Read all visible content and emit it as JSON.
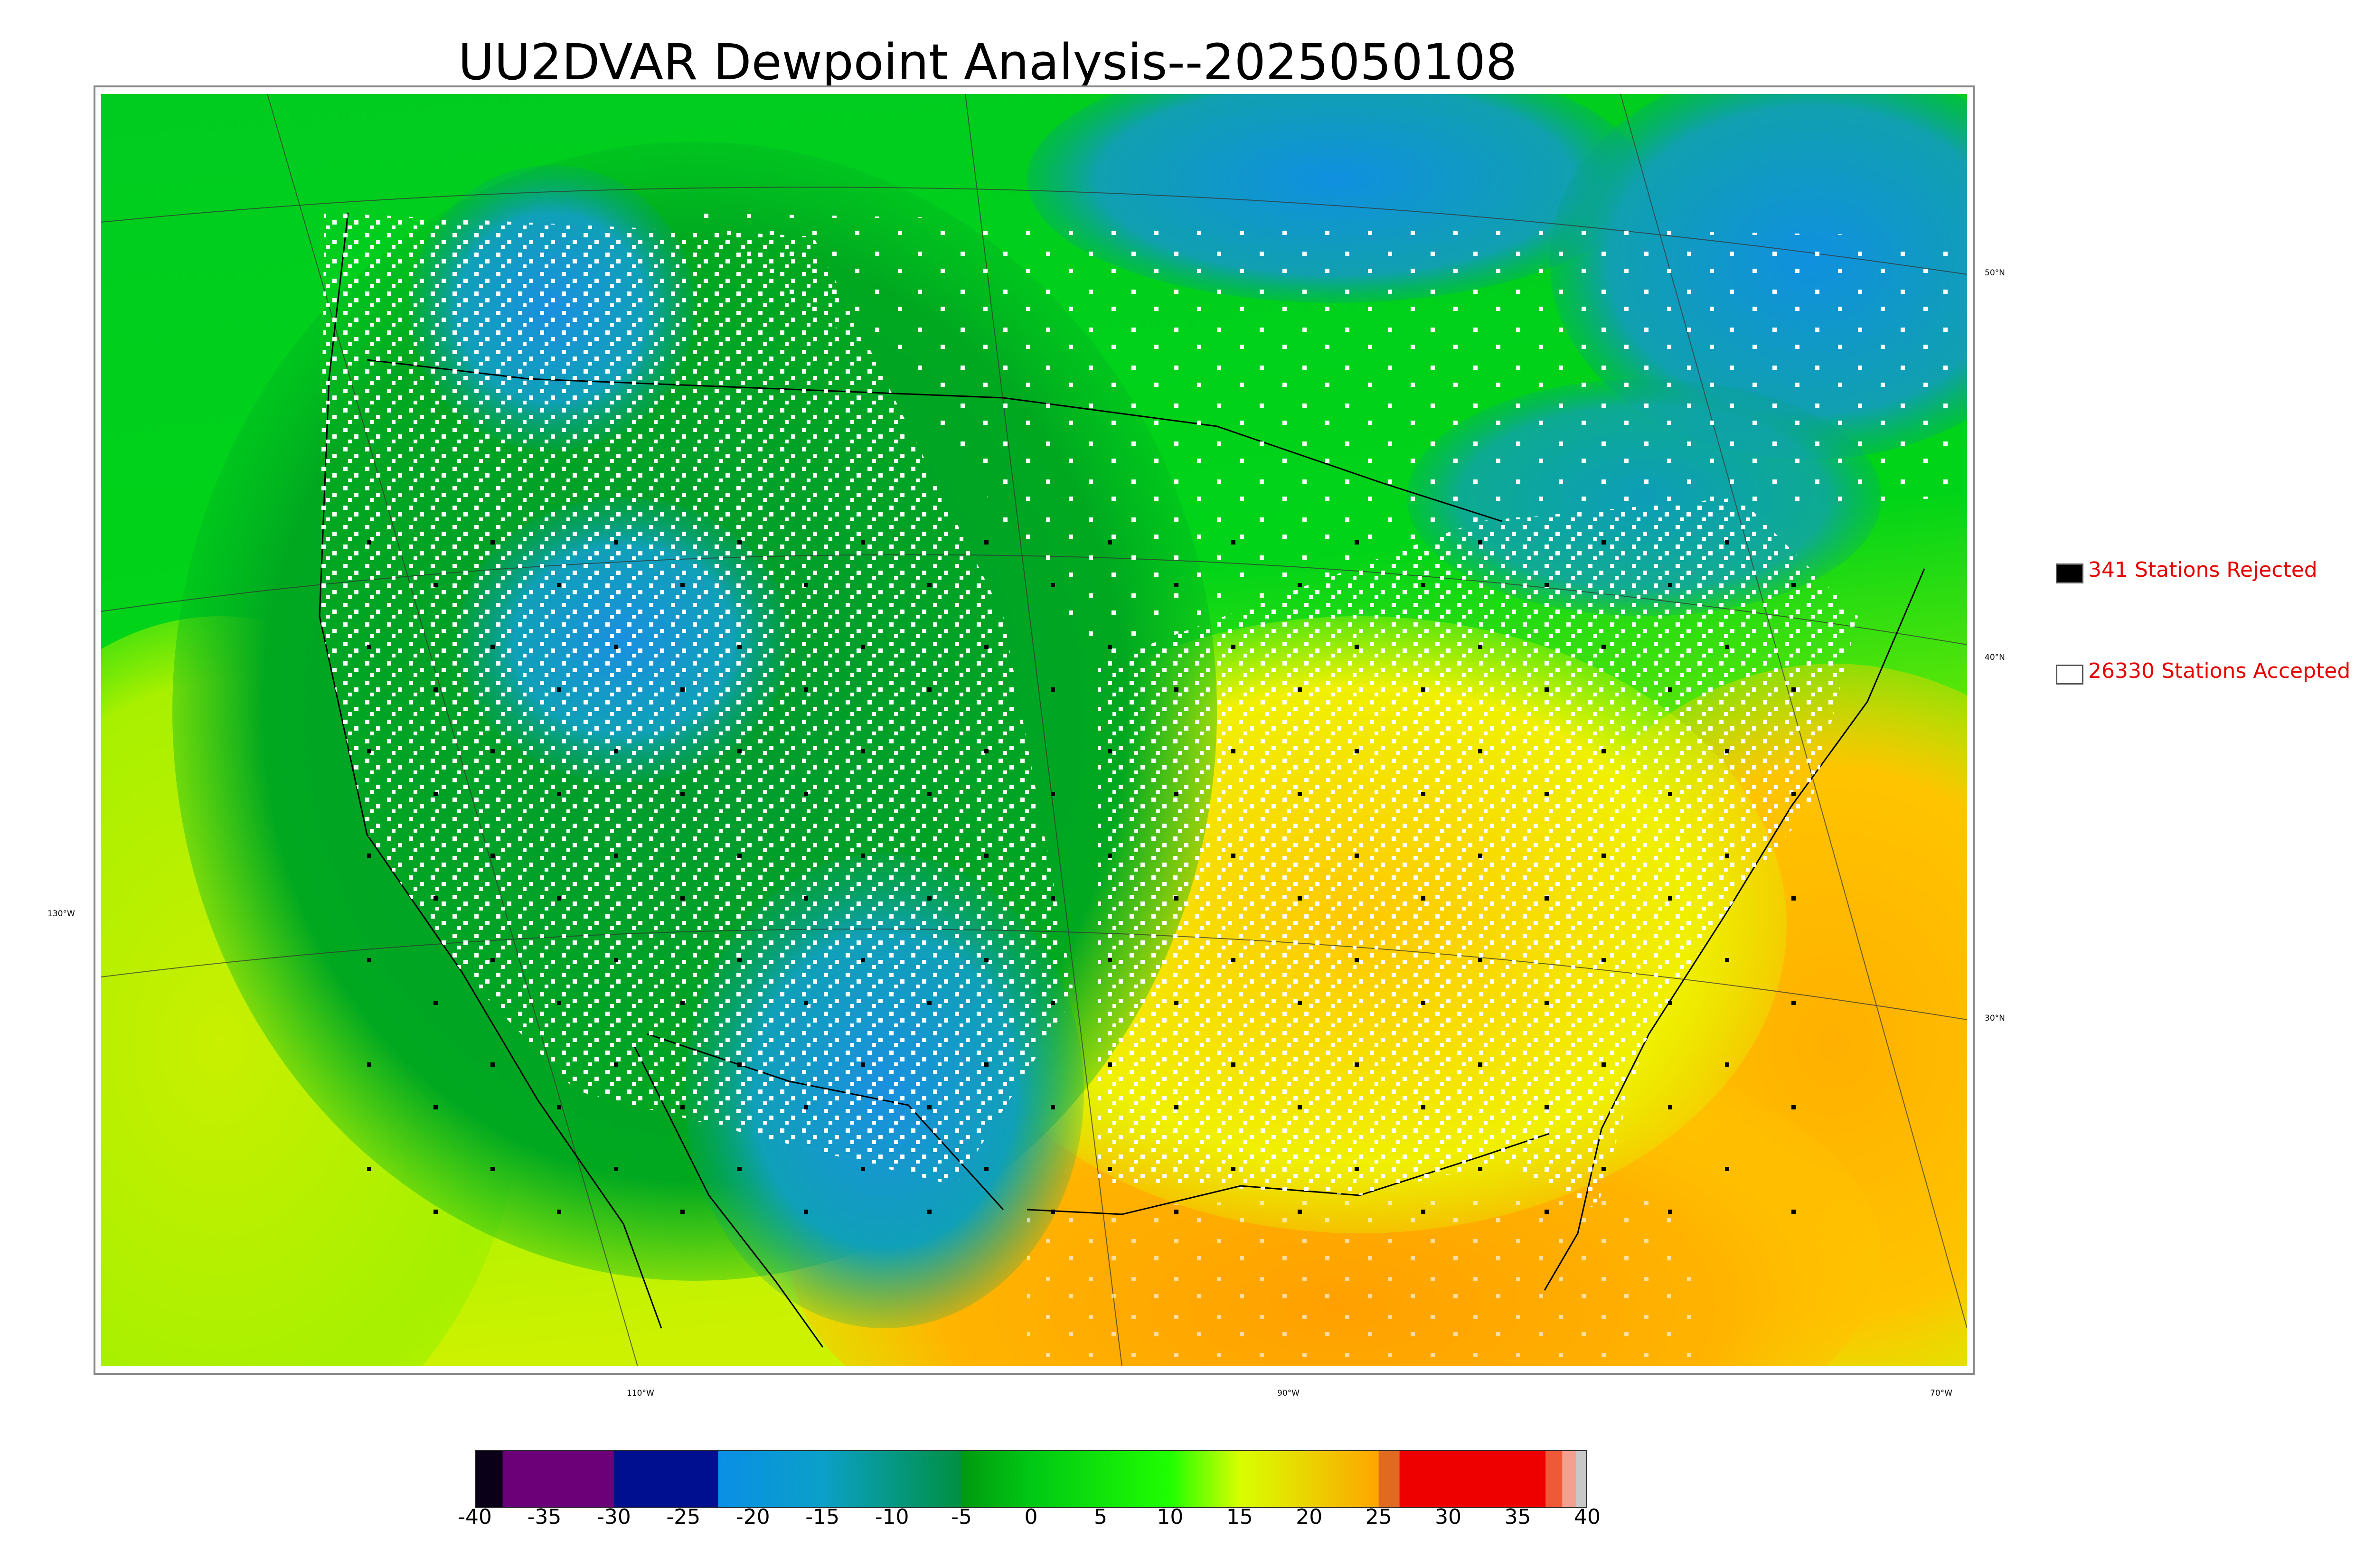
{
  "title": "UU2DVAR Dewpoint Analysis--2025050108",
  "map": {
    "lat_labels": [
      {
        "text": "50°N",
        "lat": 50
      },
      {
        "text": "40°N",
        "lat": 40
      },
      {
        "text": "30°N",
        "lat": 30
      }
    ],
    "lon_labels_bottom": [
      {
        "text": "110°W",
        "lon": -110
      },
      {
        "text": "90°W",
        "lon": -90
      },
      {
        "text": "70°W",
        "lon": -70
      }
    ],
    "lon_label_left": {
      "text": "130°W",
      "lon": -130
    }
  },
  "legend": {
    "rejected": {
      "label": "341 Stations Rejected",
      "color": "#000000"
    },
    "accepted": {
      "label": "26330 Stations Accepted",
      "color": "#ffffff"
    }
  },
  "colorbar": {
    "ticks": [
      "-40",
      "-35",
      "-30",
      "-25",
      "-20",
      "-15",
      "-10",
      "-5",
      "0",
      "5",
      "10",
      "15",
      "20",
      "25",
      "30",
      "35",
      "40"
    ],
    "range": [
      -40,
      40
    ],
    "stops": [
      {
        "from": -40,
        "to": -38,
        "color": "#0a0018"
      },
      {
        "from": -38,
        "to": -30,
        "color": "#6b0078"
      },
      {
        "from": -30,
        "to": -22.5,
        "color": "#000f8f"
      },
      {
        "from": -22.5,
        "to": -15,
        "color": "#0a8fe6",
        "to_color": "#0ba0c8"
      },
      {
        "from": -15,
        "to": -5,
        "color": "#0ba0c8",
        "to_color": "#009040"
      },
      {
        "from": -5,
        "to": 0,
        "color": "#009a10",
        "to_color": "#00c814"
      },
      {
        "from": 0,
        "to": 10,
        "color": "#00c814",
        "to_color": "#20ff00"
      },
      {
        "from": 10,
        "to": 15,
        "color": "#20ff00",
        "to_color": "#d8ff00"
      },
      {
        "from": 15,
        "to": 25,
        "color": "#d8ff00",
        "to_color": "#ffa500"
      },
      {
        "from": 25,
        "to": 26.5,
        "color": "#e06a20"
      },
      {
        "from": 26.5,
        "to": 37,
        "color": "#ee0000"
      },
      {
        "from": 37,
        "to": 38.2,
        "color": "#ee5a38"
      },
      {
        "from": 38.2,
        "to": 39.2,
        "color": "#f4a090"
      },
      {
        "from": 39.2,
        "to": 40,
        "color": "#c8c8c8"
      }
    ]
  }
}
